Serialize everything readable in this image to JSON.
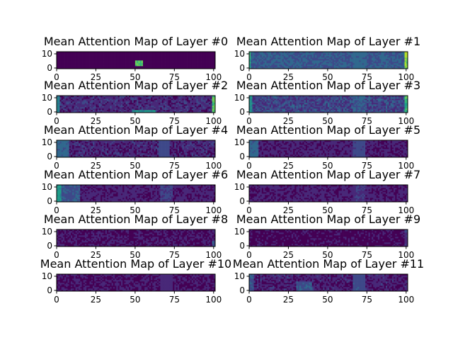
{
  "chart_data": [
    {
      "type": "heatmap",
      "title": "Mean Attention Map of Layer #0",
      "xticks": [
        "0",
        "25",
        "50",
        "75",
        "100"
      ],
      "yticks": [
        "0",
        "10"
      ],
      "xlim": [
        0,
        101
      ],
      "ylim": [
        -0.5,
        11.5
      ],
      "bands": [
        {
          "x": 50,
          "w": 5,
          "r": [
            2,
            5
          ],
          "level": 0.8
        }
      ],
      "base": 0.03,
      "noise": 0.02
    },
    {
      "type": "heatmap",
      "title": "Mean Attention Map of Layer #1",
      "xticks": [
        "0",
        "25",
        "50",
        "75",
        "100"
      ],
      "yticks": [
        "0",
        "10"
      ],
      "xlim": [
        0,
        101
      ],
      "ylim": [
        -0.5,
        11.5
      ],
      "bands": [
        {
          "x": 0,
          "w": 1,
          "r": [
            0,
            11
          ],
          "level": 0.7
        },
        {
          "x": 66,
          "w": 8,
          "r": [
            0,
            11
          ],
          "level": 0.35
        },
        {
          "x": 99,
          "w": 2,
          "r": [
            0,
            11
          ],
          "level": 0.95
        }
      ],
      "base": 0.28,
      "noise": 0.1
    },
    {
      "type": "heatmap",
      "title": "Mean Attention Map of Layer #2",
      "xticks": [
        "0",
        "25",
        "50",
        "75",
        "100"
      ],
      "yticks": [
        "0",
        "10"
      ],
      "xlim": [
        0,
        101
      ],
      "ylim": [
        -0.5,
        11.5
      ],
      "bands": [
        {
          "x": 0,
          "w": 2,
          "r": [
            0,
            11
          ],
          "level": 0.5
        },
        {
          "x": 48,
          "w": 15,
          "r": [
            0,
            1
          ],
          "level": 0.55
        },
        {
          "x": 99,
          "w": 2,
          "r": [
            0,
            11
          ],
          "level": 0.8
        }
      ],
      "base": 0.12,
      "noise": 0.1
    },
    {
      "type": "heatmap",
      "title": "Mean Attention Map of Layer #3",
      "xticks": [
        "0",
        "25",
        "50",
        "75",
        "100"
      ],
      "yticks": [
        "0",
        "10"
      ],
      "xlim": [
        0,
        101
      ],
      "ylim": [
        -0.5,
        11.5
      ],
      "bands": [
        {
          "x": 0,
          "w": 2,
          "r": [
            0,
            11
          ],
          "level": 0.55
        },
        {
          "x": 66,
          "w": 8,
          "r": [
            0,
            11
          ],
          "level": 0.32
        },
        {
          "x": 99,
          "w": 2,
          "r": [
            0,
            11
          ],
          "level": 0.75
        }
      ],
      "base": 0.2,
      "noise": 0.12
    },
    {
      "type": "heatmap",
      "title": "Mean Attention Map of Layer #4",
      "xticks": [
        "0",
        "25",
        "50",
        "75",
        "100"
      ],
      "yticks": [
        "0",
        "10"
      ],
      "xlim": [
        0,
        101
      ],
      "ylim": [
        -0.5,
        11.5
      ],
      "bands": [
        {
          "x": 0,
          "w": 8,
          "r": [
            0,
            11
          ],
          "level": 0.35
        },
        {
          "x": 65,
          "w": 7,
          "r": [
            0,
            11
          ],
          "level": 0.25
        }
      ],
      "base": 0.1,
      "noise": 0.1
    },
    {
      "type": "heatmap",
      "title": "Mean Attention Map of Layer #5",
      "xticks": [
        "0",
        "25",
        "50",
        "75",
        "100"
      ],
      "yticks": [
        "0",
        "10"
      ],
      "xlim": [
        0,
        101
      ],
      "ylim": [
        -0.5,
        11.5
      ],
      "bands": [
        {
          "x": 0,
          "w": 6,
          "r": [
            0,
            11
          ],
          "level": 0.35
        },
        {
          "x": 66,
          "w": 8,
          "r": [
            0,
            11
          ],
          "level": 0.22
        }
      ],
      "base": 0.08,
      "noise": 0.08
    },
    {
      "type": "heatmap",
      "title": "Mean Attention Map of Layer #6",
      "xticks": [
        "0",
        "25",
        "50",
        "75",
        "100"
      ],
      "yticks": [
        "0",
        "10"
      ],
      "xlim": [
        0,
        101
      ],
      "ylim": [
        -0.5,
        11.5
      ],
      "bands": [
        {
          "x": 0,
          "w": 3,
          "r": [
            0,
            11
          ],
          "level": 0.6
        },
        {
          "x": 3,
          "w": 12,
          "r": [
            0,
            11
          ],
          "level": 0.3
        },
        {
          "x": 66,
          "w": 8,
          "r": [
            0,
            11
          ],
          "level": 0.2
        }
      ],
      "base": 0.08,
      "noise": 0.08
    },
    {
      "type": "heatmap",
      "title": "Mean Attention Map of Layer #7",
      "xticks": [
        "0",
        "25",
        "50",
        "75",
        "100"
      ],
      "yticks": [
        "0",
        "10"
      ],
      "xlim": [
        0,
        101
      ],
      "ylim": [
        -0.5,
        11.5
      ],
      "bands": [
        {
          "x": 66,
          "w": 8,
          "r": [
            0,
            11
          ],
          "level": 0.18
        }
      ],
      "base": 0.07,
      "noise": 0.06
    },
    {
      "type": "heatmap",
      "title": "Mean Attention Map of Layer #8",
      "xticks": [
        "0",
        "25",
        "50",
        "75",
        "100"
      ],
      "yticks": [
        "0",
        "10"
      ],
      "xlim": [
        0,
        101
      ],
      "ylim": [
        -0.5,
        11.5
      ],
      "bands": [
        {
          "x": 99,
          "w": 2,
          "r": [
            0,
            3
          ],
          "level": 0.3
        }
      ],
      "base": 0.05,
      "noise": 0.04
    },
    {
      "type": "heatmap",
      "title": "Mean Attention Map of Layer #9",
      "xticks": [
        "0",
        "25",
        "50",
        "75",
        "100"
      ],
      "yticks": [
        "0",
        "10"
      ],
      "xlim": [
        0,
        101
      ],
      "ylim": [
        -0.5,
        11.5
      ],
      "bands": [
        {
          "x": 99,
          "w": 2,
          "r": [
            0,
            11
          ],
          "level": 0.18
        }
      ],
      "base": 0.04,
      "noise": 0.03
    },
    {
      "type": "heatmap",
      "title": "Mean Attention Map of Layer #10",
      "xticks": [
        "0",
        "25",
        "50",
        "75",
        "100"
      ],
      "yticks": [
        "0",
        "10"
      ],
      "xlim": [
        0,
        101
      ],
      "ylim": [
        -0.5,
        11.5
      ],
      "bands": [
        {
          "x": 66,
          "w": 8,
          "r": [
            0,
            11
          ],
          "level": 0.12
        }
      ],
      "base": 0.05,
      "noise": 0.04
    },
    {
      "type": "heatmap",
      "title": "Mean Attention Map of Layer #11",
      "xticks": [
        "0",
        "25",
        "50",
        "75",
        "100"
      ],
      "yticks": [
        "0",
        "10"
      ],
      "xlim": [
        0,
        101
      ],
      "ylim": [
        -0.5,
        11.5
      ],
      "bands": [
        {
          "x": 0,
          "w": 3,
          "r": [
            0,
            11
          ],
          "level": 0.3
        },
        {
          "x": 30,
          "w": 10,
          "r": [
            0,
            6
          ],
          "level": 0.3
        },
        {
          "x": 66,
          "w": 8,
          "r": [
            0,
            11
          ],
          "level": 0.28
        }
      ],
      "base": 0.08,
      "noise": 0.1
    }
  ],
  "colors": {
    "colormap": "viridis",
    "viridis": [
      "#440154",
      "#482878",
      "#3e4989",
      "#31688e",
      "#26828e",
      "#1f9e89",
      "#35b779",
      "#6ece58",
      "#b5de2b",
      "#fde725"
    ]
  }
}
